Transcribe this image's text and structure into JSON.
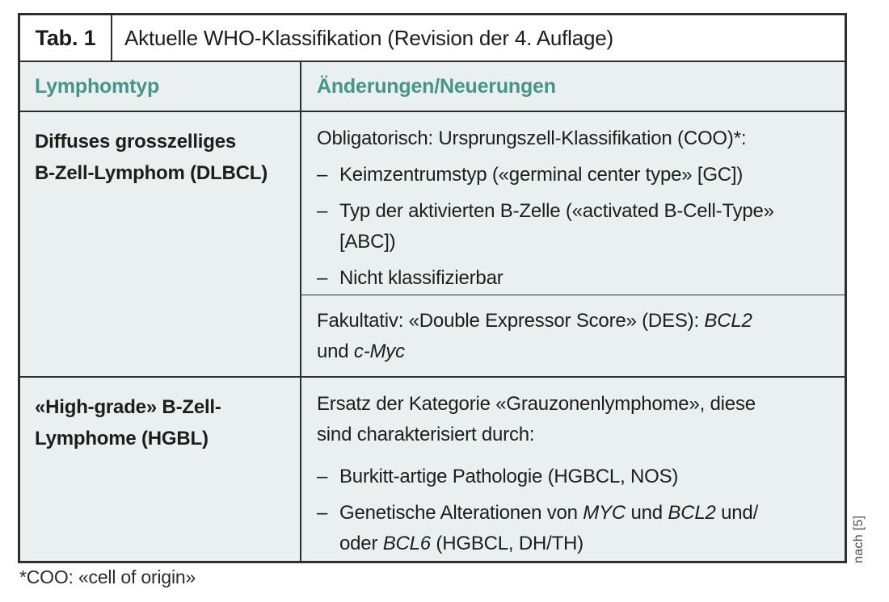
{
  "colors": {
    "accent": "#46948b",
    "cell_bg": "#eaf0ef",
    "border": "#2e2e2c",
    "text": "#1d1d1b",
    "note": "#4a4a4a"
  },
  "header": {
    "tab_label": "Tab. 1",
    "title": "Aktuelle WHO-Klassifikation (Revision der 4. Auflage)"
  },
  "columns": {
    "col1": "Lymphomtyp",
    "col2": "Änderungen/Neuerungen"
  },
  "dash": "–",
  "rows": {
    "dlbcl": {
      "type_line1": "Diffuses grosszelliges",
      "type_line2": "B-Zell-Lymphom (DLBCL)",
      "obligatorisch": {
        "intro": "Obligatorisch: Ursprungszell-Klassifikation (COO)*:",
        "item1": "Keimzentrumstyp («germinal center type» [GC])",
        "item2_line1": "Typ der aktivierten B-Zelle («activated B-Cell-Type»",
        "item2_line2": "[ABC])",
        "item3": "Nicht klassifizierbar"
      },
      "fakultativ": {
        "t1": "Fakultativ: «Double Expressor Score» (DES): ",
        "i1": "BCL2",
        "t2": "und ",
        "i2": "c-Myc"
      }
    },
    "hgbl": {
      "type_line1": "«High-grade» B-Zell-",
      "type_line2": "Lymphome (HGBL)",
      "content": {
        "intro_line1": "Ersatz der Kategorie «Grauzonenlymphome», diese",
        "intro_line2": "sind charakterisiert durch:",
        "item1": "Burkitt-artige Pathologie (HGBCL, NOS)",
        "item2": {
          "t1": "Genetische Alterationen von ",
          "i1": "MYC",
          "t2": " und ",
          "i2": "BCL2",
          "t3": " und/",
          "t4": "oder ",
          "i3": "BCL6",
          "t5": " (HGBCL, DH/TH)"
        }
      }
    }
  },
  "source_note": "nach [5]",
  "footnote": "*COO: «cell of origin»"
}
